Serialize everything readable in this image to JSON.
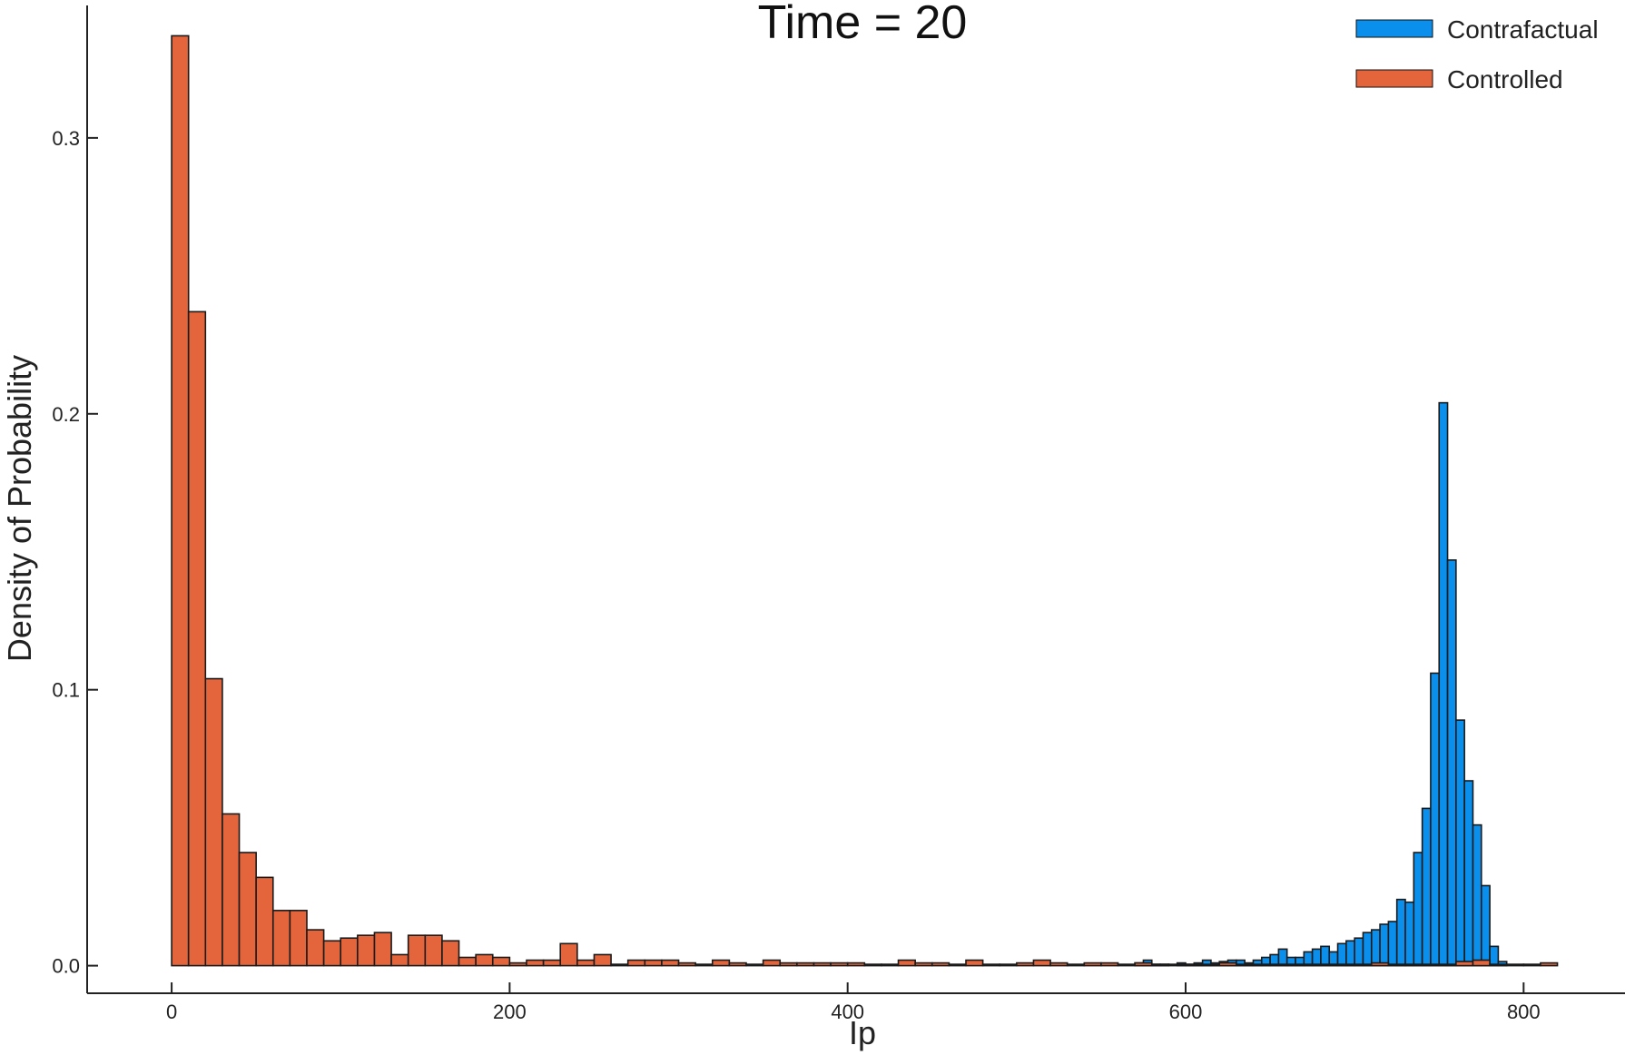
{
  "chart_data": {
    "type": "bar",
    "title": "Time = 20",
    "xlabel": "Ip",
    "ylabel": "Density of Probability",
    "xlim": [
      -50,
      860
    ],
    "ylim": [
      -0.01,
      0.348
    ],
    "xticks": [
      0,
      200,
      400,
      600,
      800
    ],
    "xtick_labels": [
      "0",
      "200",
      "400",
      "600",
      "800"
    ],
    "yticks": [
      0.0,
      0.1,
      0.2,
      0.3
    ],
    "ytick_labels": [
      "0.0",
      "0.1",
      "0.2",
      "0.3"
    ],
    "grid": false,
    "legend_position": "top-right",
    "series": [
      {
        "name": "Contrafactual",
        "color": "#0a8fec",
        "bin_width": 5,
        "x": [
          570,
          575,
          580,
          585,
          590,
          595,
          600,
          605,
          610,
          615,
          620,
          625,
          630,
          635,
          640,
          645,
          650,
          655,
          660,
          665,
          670,
          675,
          680,
          685,
          690,
          695,
          700,
          705,
          710,
          715,
          720,
          725,
          730,
          735,
          740,
          745,
          750,
          755,
          760,
          765,
          770,
          775,
          780,
          785
        ],
        "values": [
          0.001,
          0.002,
          0.0005,
          0.0005,
          0.0,
          0.001,
          0.0005,
          0.001,
          0.002,
          0.001,
          0.0015,
          0.002,
          0.002,
          0.001,
          0.002,
          0.003,
          0.004,
          0.006,
          0.003,
          0.003,
          0.005,
          0.006,
          0.007,
          0.005,
          0.008,
          0.009,
          0.01,
          0.012,
          0.013,
          0.015,
          0.016,
          0.024,
          0.023,
          0.041,
          0.057,
          0.106,
          0.204,
          0.147,
          0.089,
          0.067,
          0.051,
          0.029,
          0.007,
          0.0015
        ]
      },
      {
        "name": "Controlled",
        "color": "#e4653b",
        "bin_width": 10,
        "x": [
          0,
          10,
          20,
          30,
          40,
          50,
          60,
          70,
          80,
          90,
          100,
          110,
          120,
          130,
          140,
          150,
          160,
          170,
          180,
          190,
          200,
          210,
          220,
          230,
          240,
          250,
          260,
          270,
          280,
          290,
          300,
          310,
          320,
          330,
          340,
          350,
          360,
          370,
          380,
          390,
          400,
          410,
          420,
          430,
          440,
          450,
          460,
          470,
          480,
          490,
          500,
          510,
          520,
          530,
          540,
          550,
          560,
          570,
          580,
          590,
          600,
          610,
          620,
          630,
          640,
          650,
          660,
          670,
          680,
          690,
          700,
          710,
          720,
          730,
          740,
          750,
          760,
          770,
          780,
          790,
          800,
          810
        ],
        "values": [
          0.337,
          0.237,
          0.104,
          0.055,
          0.041,
          0.032,
          0.02,
          0.02,
          0.013,
          0.009,
          0.01,
          0.011,
          0.012,
          0.004,
          0.011,
          0.011,
          0.009,
          0.003,
          0.004,
          0.003,
          0.001,
          0.002,
          0.002,
          0.008,
          0.002,
          0.004,
          0.0005,
          0.002,
          0.002,
          0.002,
          0.001,
          0.0005,
          0.002,
          0.001,
          0.0005,
          0.002,
          0.001,
          0.001,
          0.001,
          0.001,
          0.001,
          0.0005,
          0.0005,
          0.002,
          0.001,
          0.001,
          0.0005,
          0.002,
          0.0005,
          0.0005,
          0.001,
          0.002,
          0.001,
          0.0005,
          0.001,
          0.001,
          0.0005,
          0.001,
          0.0005,
          0.0005,
          0.0005,
          0.0005,
          0.001,
          0.0005,
          0.0005,
          0.0005,
          0.0005,
          0.0005,
          0.0005,
          0.0005,
          0.0005,
          0.001,
          0.0005,
          0.0005,
          0.0005,
          0.0005,
          0.0015,
          0.002,
          0.0005,
          0.0005,
          0.0005,
          0.001
        ]
      }
    ]
  }
}
